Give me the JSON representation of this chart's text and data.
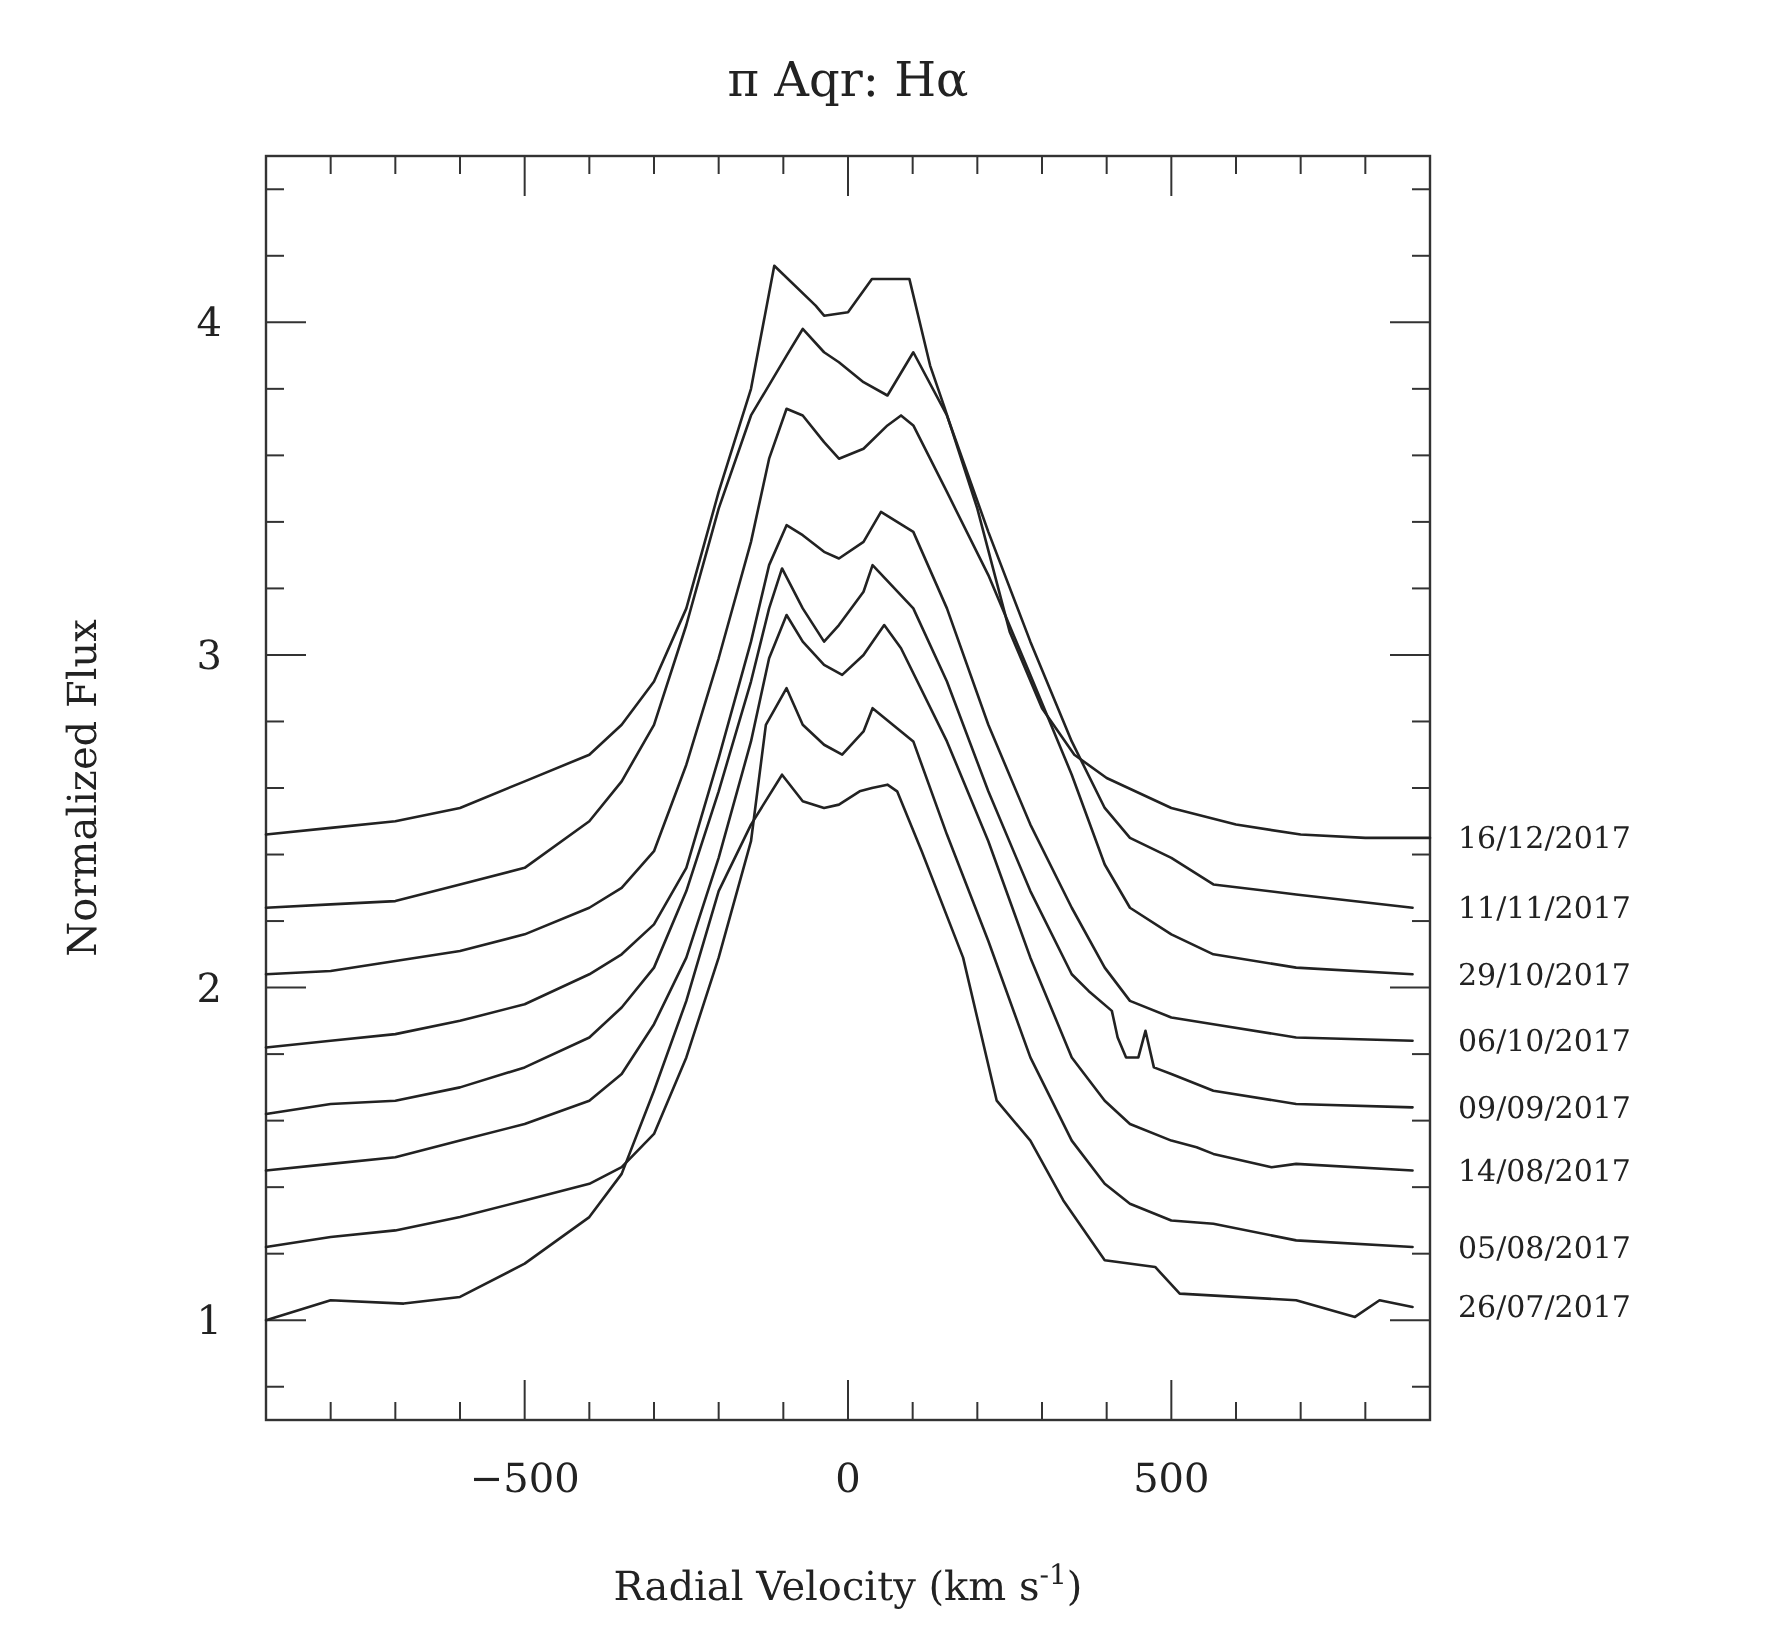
{
  "chart_data": {
    "type": "line",
    "title": "π Aqr: Hα",
    "xlabel": "Radial Velocity (km s$^{-1}$)",
    "ylabel": "Normalized Flux",
    "xlim": [
      -900,
      900
    ],
    "ylim": [
      0.7,
      4.5
    ],
    "xticks": [
      {
        "value": -800,
        "label": null
      },
      {
        "value": -700,
        "label": null
      },
      {
        "value": -600,
        "label": null
      },
      {
        "value": -500,
        "label": "−500"
      },
      {
        "value": -400,
        "label": null
      },
      {
        "value": -300,
        "label": null
      },
      {
        "value": -200,
        "label": null
      },
      {
        "value": -100,
        "label": null
      },
      0,
      {
        "value": 100,
        "label": null
      },
      {
        "value": 200,
        "label": null
      },
      {
        "value": 300,
        "label": null
      },
      {
        "value": 400,
        "label": null
      },
      500,
      {
        "value": 600,
        "label": null
      },
      {
        "value": 700,
        "label": null
      },
      {
        "value": 800,
        "label": null
      }
    ],
    "yticks": [
      {
        "value": 0.8,
        "label": null
      },
      1,
      {
        "value": 1.2,
        "label": null
      },
      {
        "value": 1.4,
        "label": null
      },
      {
        "value": 1.6,
        "label": null
      },
      {
        "value": 1.8,
        "label": null
      },
      2,
      {
        "value": 2.2,
        "label": null
      },
      {
        "value": 2.4,
        "label": null
      },
      {
        "value": 2.6,
        "label": null
      },
      {
        "value": 2.8,
        "label": null
      },
      3,
      {
        "value": 3.2,
        "label": null
      },
      {
        "value": 3.4,
        "label": null
      },
      {
        "value": 3.6,
        "label": null
      },
      {
        "value": 3.8,
        "label": null
      },
      4,
      {
        "value": 4.2,
        "label": null
      },
      {
        "value": 4.4,
        "label": null
      }
    ],
    "grid": false,
    "marker": "none",
    "line_style": "solid",
    "series": [
      {
        "name": "16/12/2017",
        "color": "#222222",
        "x": [
          -900,
          -800,
          -700,
          -600,
          -500,
          -400,
          -350,
          -300,
          -250,
          -200,
          -150,
          -114,
          -50,
          -37,
          0,
          37,
          95,
          127,
          150,
          200,
          250,
          300,
          350,
          400,
          500,
          600,
          700,
          800,
          900
        ],
        "values": [
          2.46,
          2.48,
          2.5,
          2.54,
          2.62,
          2.7,
          2.79,
          2.92,
          3.14,
          3.49,
          3.8,
          4.17,
          4.05,
          4.02,
          4.03,
          4.13,
          4.13,
          3.87,
          3.74,
          3.44,
          3.07,
          2.84,
          2.7,
          2.63,
          2.54,
          2.49,
          2.46,
          2.45,
          2.45
        ]
      },
      {
        "name": "11/11/2017",
        "color": "#222222",
        "x": [
          -900,
          -800,
          -700,
          -600,
          -500,
          -400,
          -350,
          -300,
          -250,
          -200,
          -150,
          -95,
          -70,
          -37,
          -14,
          24,
          61,
          101,
          153,
          217,
          282,
          346,
          397,
          436,
          500,
          565,
          693,
          873
        ],
        "values": [
          2.24,
          2.25,
          2.26,
          2.31,
          2.36,
          2.5,
          2.62,
          2.79,
          3.09,
          3.44,
          3.72,
          3.9,
          3.98,
          3.91,
          3.88,
          3.82,
          3.78,
          3.91,
          3.72,
          3.37,
          3.04,
          2.74,
          2.54,
          2.45,
          2.39,
          2.31,
          2.28,
          2.24
        ]
      },
      {
        "name": "29/10/2017",
        "color": "#222222",
        "x": [
          -900,
          -800,
          -700,
          -600,
          -500,
          -400,
          -350,
          -300,
          -250,
          -200,
          -150,
          -122,
          -95,
          -70,
          -37,
          -14,
          24,
          61,
          82,
          101,
          153,
          217,
          282,
          346,
          397,
          436,
          500,
          565,
          693,
          873
        ],
        "values": [
          2.04,
          2.05,
          2.08,
          2.11,
          2.16,
          2.24,
          2.3,
          2.41,
          2.67,
          2.99,
          3.34,
          3.59,
          3.74,
          3.72,
          3.64,
          3.59,
          3.62,
          3.69,
          3.72,
          3.69,
          3.49,
          3.24,
          2.94,
          2.64,
          2.37,
          2.24,
          2.16,
          2.1,
          2.06,
          2.04
        ]
      },
      {
        "name": "06/10/2017",
        "color": "#222222",
        "x": [
          -900,
          -800,
          -700,
          -600,
          -500,
          -400,
          -350,
          -300,
          -250,
          -200,
          -150,
          -122,
          -95,
          -70,
          -37,
          -14,
          24,
          51,
          101,
          153,
          217,
          282,
          346,
          397,
          436,
          500,
          565,
          693,
          873
        ],
        "values": [
          1.82,
          1.84,
          1.86,
          1.9,
          1.95,
          2.04,
          2.1,
          2.19,
          2.36,
          2.69,
          3.04,
          3.27,
          3.39,
          3.36,
          3.31,
          3.29,
          3.34,
          3.43,
          3.37,
          3.14,
          2.79,
          2.49,
          2.24,
          2.06,
          1.96,
          1.91,
          1.89,
          1.85,
          1.84
        ]
      },
      {
        "name": "09/09/2017",
        "color": "#222222",
        "x": [
          -900,
          -800,
          -700,
          -600,
          -500,
          -400,
          -350,
          -300,
          -250,
          -200,
          -150,
          -122,
          -102,
          -70,
          -37,
          -14,
          24,
          38,
          101,
          153,
          217,
          282,
          346,
          372,
          408,
          417,
          430,
          449,
          460,
          473,
          500,
          565,
          693,
          873
        ],
        "values": [
          1.62,
          1.65,
          1.66,
          1.7,
          1.76,
          1.85,
          1.94,
          2.06,
          2.29,
          2.59,
          2.92,
          3.14,
          3.26,
          3.14,
          3.04,
          3.09,
          3.19,
          3.27,
          3.14,
          2.92,
          2.59,
          2.29,
          2.04,
          1.99,
          1.93,
          1.85,
          1.79,
          1.79,
          1.87,
          1.76,
          1.74,
          1.69,
          1.65,
          1.64
        ]
      },
      {
        "name": "14/08/2017",
        "color": "#222222",
        "x": [
          -900,
          -800,
          -700,
          -600,
          -500,
          -400,
          -350,
          -300,
          -250,
          -200,
          -150,
          -122,
          -95,
          -70,
          -37,
          -9,
          24,
          56,
          82,
          153,
          217,
          282,
          346,
          397,
          436,
          500,
          539,
          565,
          655,
          693,
          873
        ],
        "values": [
          1.45,
          1.47,
          1.49,
          1.54,
          1.59,
          1.66,
          1.74,
          1.89,
          2.09,
          2.39,
          2.74,
          2.99,
          3.12,
          3.04,
          2.97,
          2.94,
          3.0,
          3.09,
          3.02,
          2.74,
          2.44,
          2.09,
          1.79,
          1.66,
          1.59,
          1.54,
          1.52,
          1.5,
          1.46,
          1.47,
          1.45
        ]
      },
      {
        "name": "05/08/2017",
        "color": "#222222",
        "x": [
          -900,
          -800,
          -700,
          -600,
          -500,
          -400,
          -350,
          -300,
          -250,
          -200,
          -150,
          -127,
          -95,
          -70,
          -37,
          -9,
          24,
          38,
          101,
          153,
          217,
          282,
          346,
          397,
          436,
          500,
          565,
          693,
          873
        ],
        "values": [
          1.22,
          1.25,
          1.27,
          1.31,
          1.36,
          1.41,
          1.46,
          1.56,
          1.79,
          2.09,
          2.44,
          2.79,
          2.9,
          2.79,
          2.73,
          2.7,
          2.77,
          2.84,
          2.74,
          2.46,
          2.14,
          1.79,
          1.54,
          1.41,
          1.35,
          1.3,
          1.29,
          1.24,
          1.22
        ]
      },
      {
        "name": "26/07/2017",
        "color": "#222222",
        "x": [
          -900,
          -800,
          -687,
          -600,
          -500,
          -400,
          -350,
          -300,
          -250,
          -200,
          -150,
          -102,
          -70,
          -37,
          -14,
          18,
          37,
          61,
          76,
          114,
          178,
          230,
          282,
          333,
          397,
          475,
          513,
          693,
          784,
          822,
          873
        ],
        "values": [
          1.0,
          1.06,
          1.05,
          1.07,
          1.17,
          1.31,
          1.44,
          1.69,
          1.96,
          2.29,
          2.49,
          2.64,
          2.56,
          2.54,
          2.55,
          2.59,
          2.6,
          2.61,
          2.59,
          2.41,
          2.09,
          1.66,
          1.54,
          1.36,
          1.18,
          1.16,
          1.08,
          1.06,
          1.01,
          1.06,
          1.04
        ]
      }
    ]
  }
}
